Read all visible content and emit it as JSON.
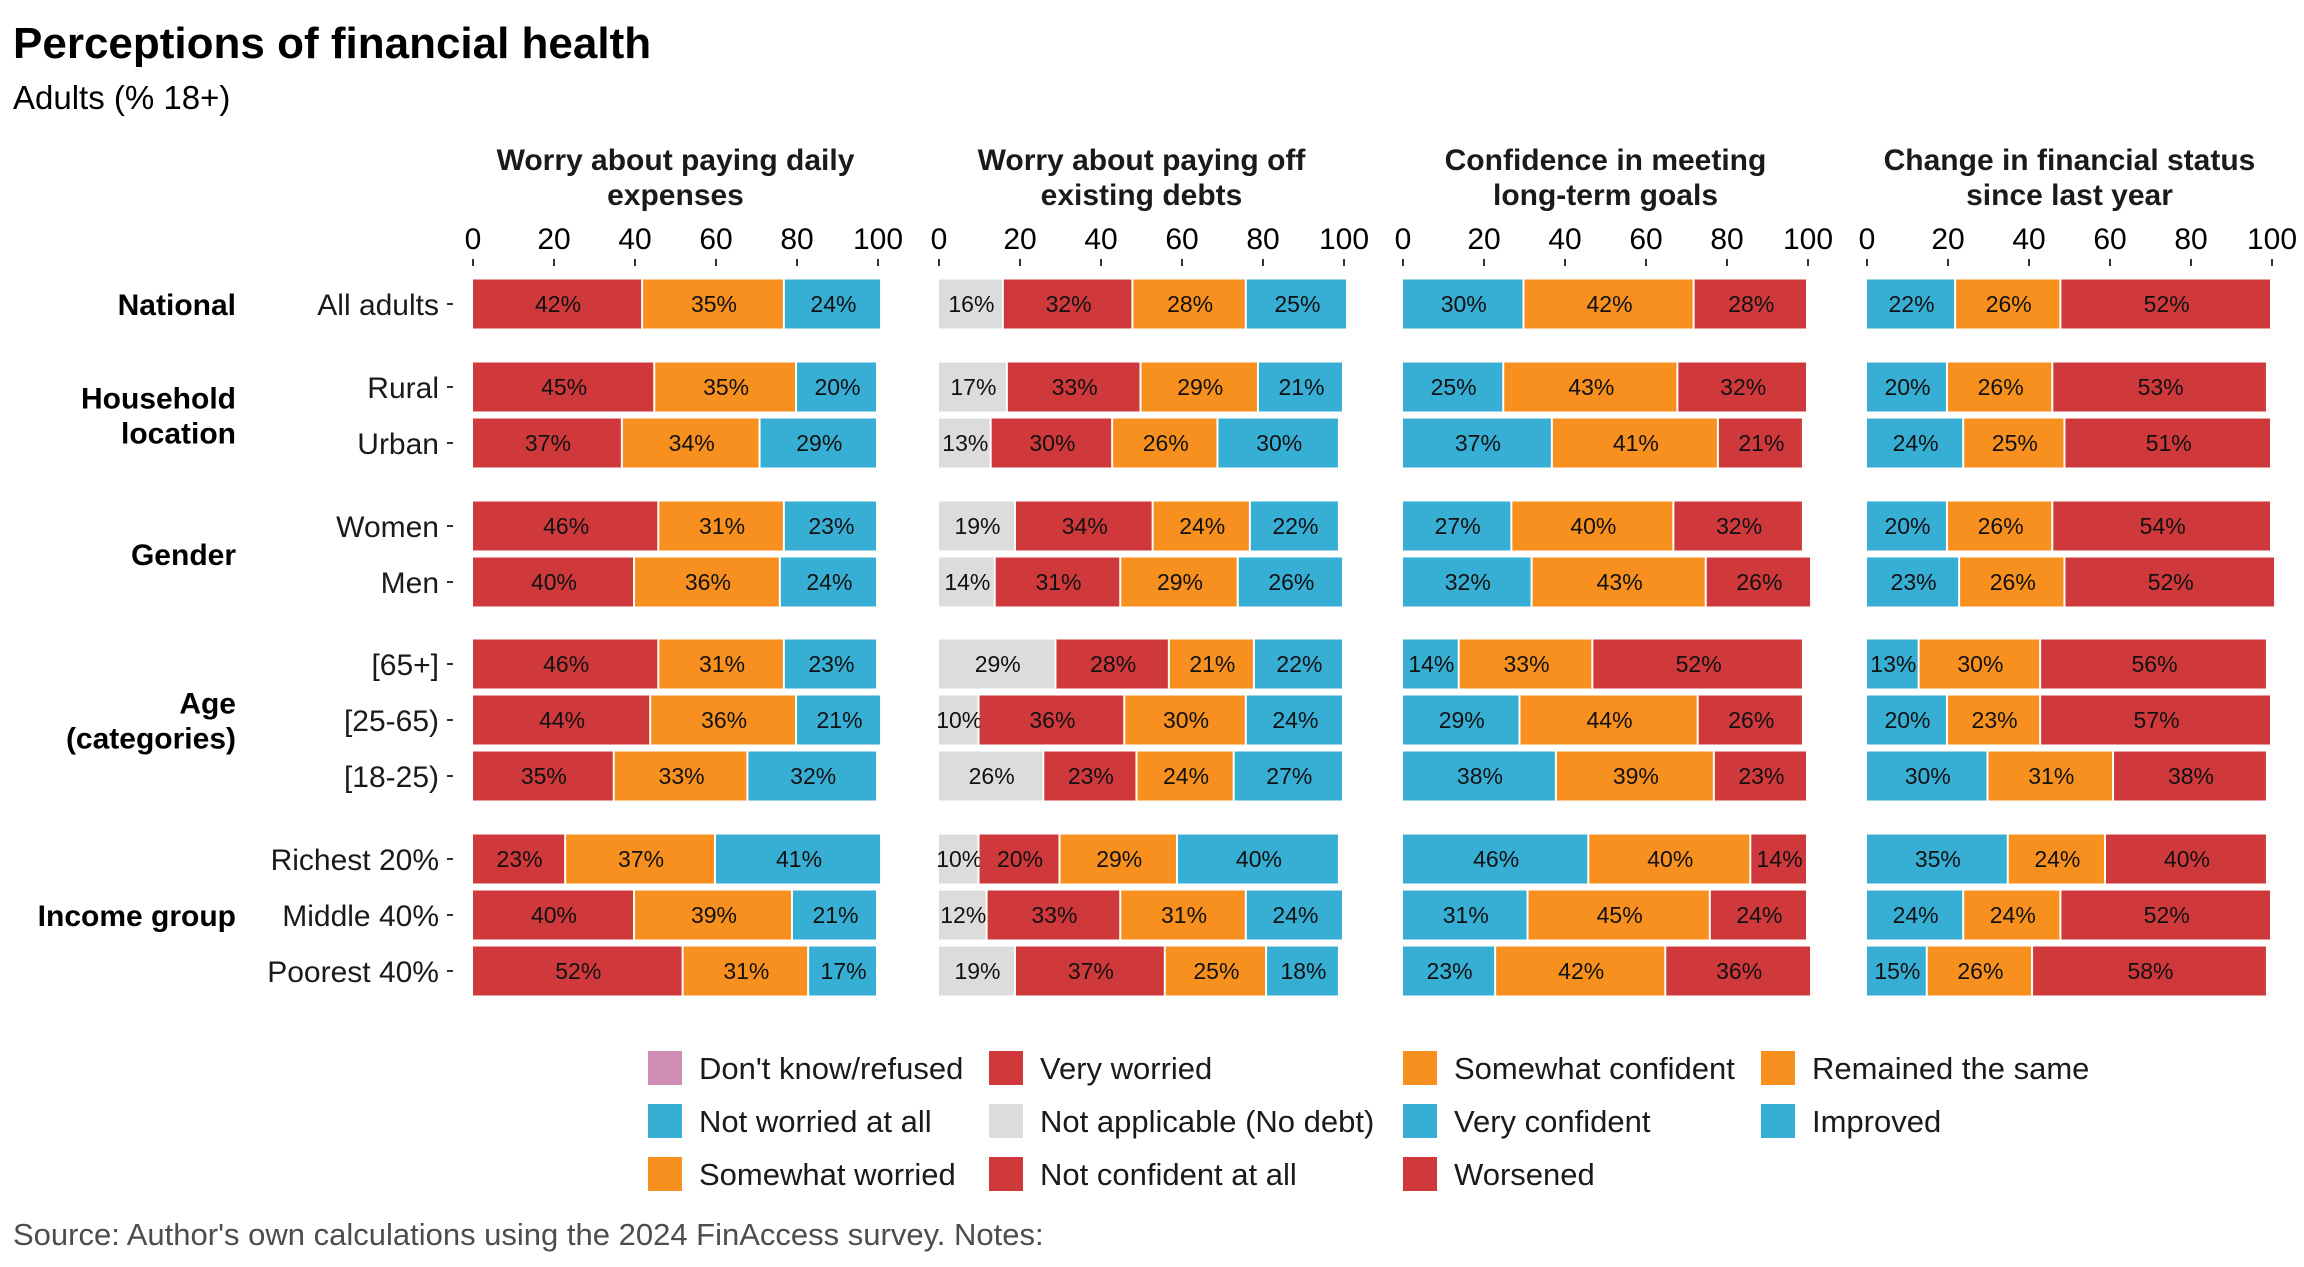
{
  "chart_data": {
    "type": "bar",
    "orientation": "horizontal",
    "stacked": true,
    "title": "Perceptions of financial health",
    "subtitle": "Adults (% 18+)",
    "caption": "Source: Author's own calculations using the 2024 FinAccess survey. Notes:",
    "xlim": [
      0,
      100
    ],
    "xticks": [
      "0",
      "20",
      "40",
      "60",
      "80",
      "100"
    ],
    "groups": [
      {
        "label": [
          "National"
        ],
        "rows": [
          "All adults"
        ]
      },
      {
        "label": [
          "Household",
          "location"
        ],
        "rows": [
          "Rural",
          "Urban"
        ]
      },
      {
        "label": [
          "Gender"
        ],
        "rows": [
          "Women",
          "Men"
        ]
      },
      {
        "label": [
          "Age",
          "(categories)"
        ],
        "rows": [
          "[65+]",
          "[25-65)",
          "[18-25)"
        ]
      },
      {
        "label": [
          "Income group"
        ],
        "rows": [
          "Richest 20%",
          "Middle 40%",
          "Poorest 40%"
        ]
      }
    ],
    "rows": [
      "All adults",
      "Rural",
      "Urban",
      "Women",
      "Men",
      "[65+]",
      "[25-65)",
      "[18-25)",
      "Richest 20%",
      "Middle 40%",
      "Poorest 40%"
    ],
    "panels": [
      {
        "title": [
          "Worry about paying daily",
          "expenses"
        ],
        "series": [
          {
            "name": "Very worried",
            "color": "#d0393c",
            "values": [
              42,
              45,
              37,
              46,
              40,
              46,
              44,
              35,
              23,
              40,
              52
            ]
          },
          {
            "name": "Somewhat worried",
            "color": "#f7901e",
            "values": [
              35,
              35,
              34,
              31,
              36,
              31,
              36,
              33,
              37,
              39,
              31
            ]
          },
          {
            "name": "Not worried at all",
            "color": "#37aed4",
            "values": [
              24,
              20,
              29,
              23,
              24,
              23,
              21,
              32,
              41,
              21,
              17
            ]
          }
        ]
      },
      {
        "title": [
          "Worry about paying off",
          "existing debts"
        ],
        "series": [
          {
            "name": "Not applicable (No debt)",
            "color": "#dcdcdc",
            "values": [
              16,
              17,
              13,
              19,
              14,
              29,
              10,
              26,
              10,
              12,
              19
            ]
          },
          {
            "name": "Very worried",
            "color": "#d0393c",
            "values": [
              32,
              33,
              30,
              34,
              31,
              28,
              36,
              23,
              20,
              33,
              37
            ]
          },
          {
            "name": "Somewhat worried",
            "color": "#f7901e",
            "values": [
              28,
              29,
              26,
              24,
              29,
              21,
              30,
              24,
              29,
              31,
              25
            ]
          },
          {
            "name": "Not worried at all",
            "color": "#37aed4",
            "values": [
              25,
              21,
              30,
              22,
              26,
              22,
              24,
              27,
              40,
              24,
              18
            ]
          }
        ]
      },
      {
        "title": [
          "Confidence in meeting",
          "long-term goals"
        ],
        "series": [
          {
            "name": "Very confident",
            "color": "#37aed4",
            "values": [
              30,
              25,
              37,
              27,
              32,
              14,
              29,
              38,
              46,
              31,
              23
            ]
          },
          {
            "name": "Somewhat confident",
            "color": "#f7901e",
            "values": [
              42,
              43,
              41,
              40,
              43,
              33,
              44,
              39,
              40,
              45,
              42
            ]
          },
          {
            "name": "Not confident at all",
            "color": "#d0393c",
            "values": [
              28,
              32,
              21,
              32,
              26,
              52,
              26,
              23,
              14,
              24,
              36
            ]
          }
        ]
      },
      {
        "title": [
          "Change in financial status",
          "since last year"
        ],
        "series": [
          {
            "name": "Improved",
            "color": "#37aed4",
            "values": [
              22,
              20,
              24,
              20,
              23,
              13,
              20,
              30,
              35,
              24,
              15
            ]
          },
          {
            "name": "Remained the same",
            "color": "#f7901e",
            "values": [
              26,
              26,
              25,
              26,
              26,
              30,
              23,
              31,
              24,
              24,
              26
            ]
          },
          {
            "name": "Worsened",
            "color": "#d0393c",
            "values": [
              52,
              53,
              51,
              54,
              52,
              56,
              57,
              38,
              40,
              52,
              58
            ]
          }
        ]
      }
    ],
    "legend": {
      "placement": "bottom",
      "columns": [
        [
          {
            "name": "Don't know/refused",
            "color": "#cf8cb5"
          },
          {
            "name": "Not worried at all",
            "color": "#37aed4"
          },
          {
            "name": "Somewhat worried",
            "color": "#f7901e"
          }
        ],
        [
          {
            "name": "Very worried",
            "color": "#d0393c"
          },
          {
            "name": "Not applicable (No debt)",
            "color": "#dcdcdc"
          },
          {
            "name": "Not confident at all",
            "color": "#d0393c"
          }
        ],
        [
          {
            "name": "Somewhat confident",
            "color": "#f7901e"
          },
          {
            "name": "Very confident",
            "color": "#37aed4"
          },
          {
            "name": "Worsened",
            "color": "#d0393c"
          }
        ],
        [
          {
            "name": "Remained the same",
            "color": "#f7901e"
          },
          {
            "name": "Improved",
            "color": "#37aed4"
          }
        ]
      ]
    },
    "grid": false
  }
}
